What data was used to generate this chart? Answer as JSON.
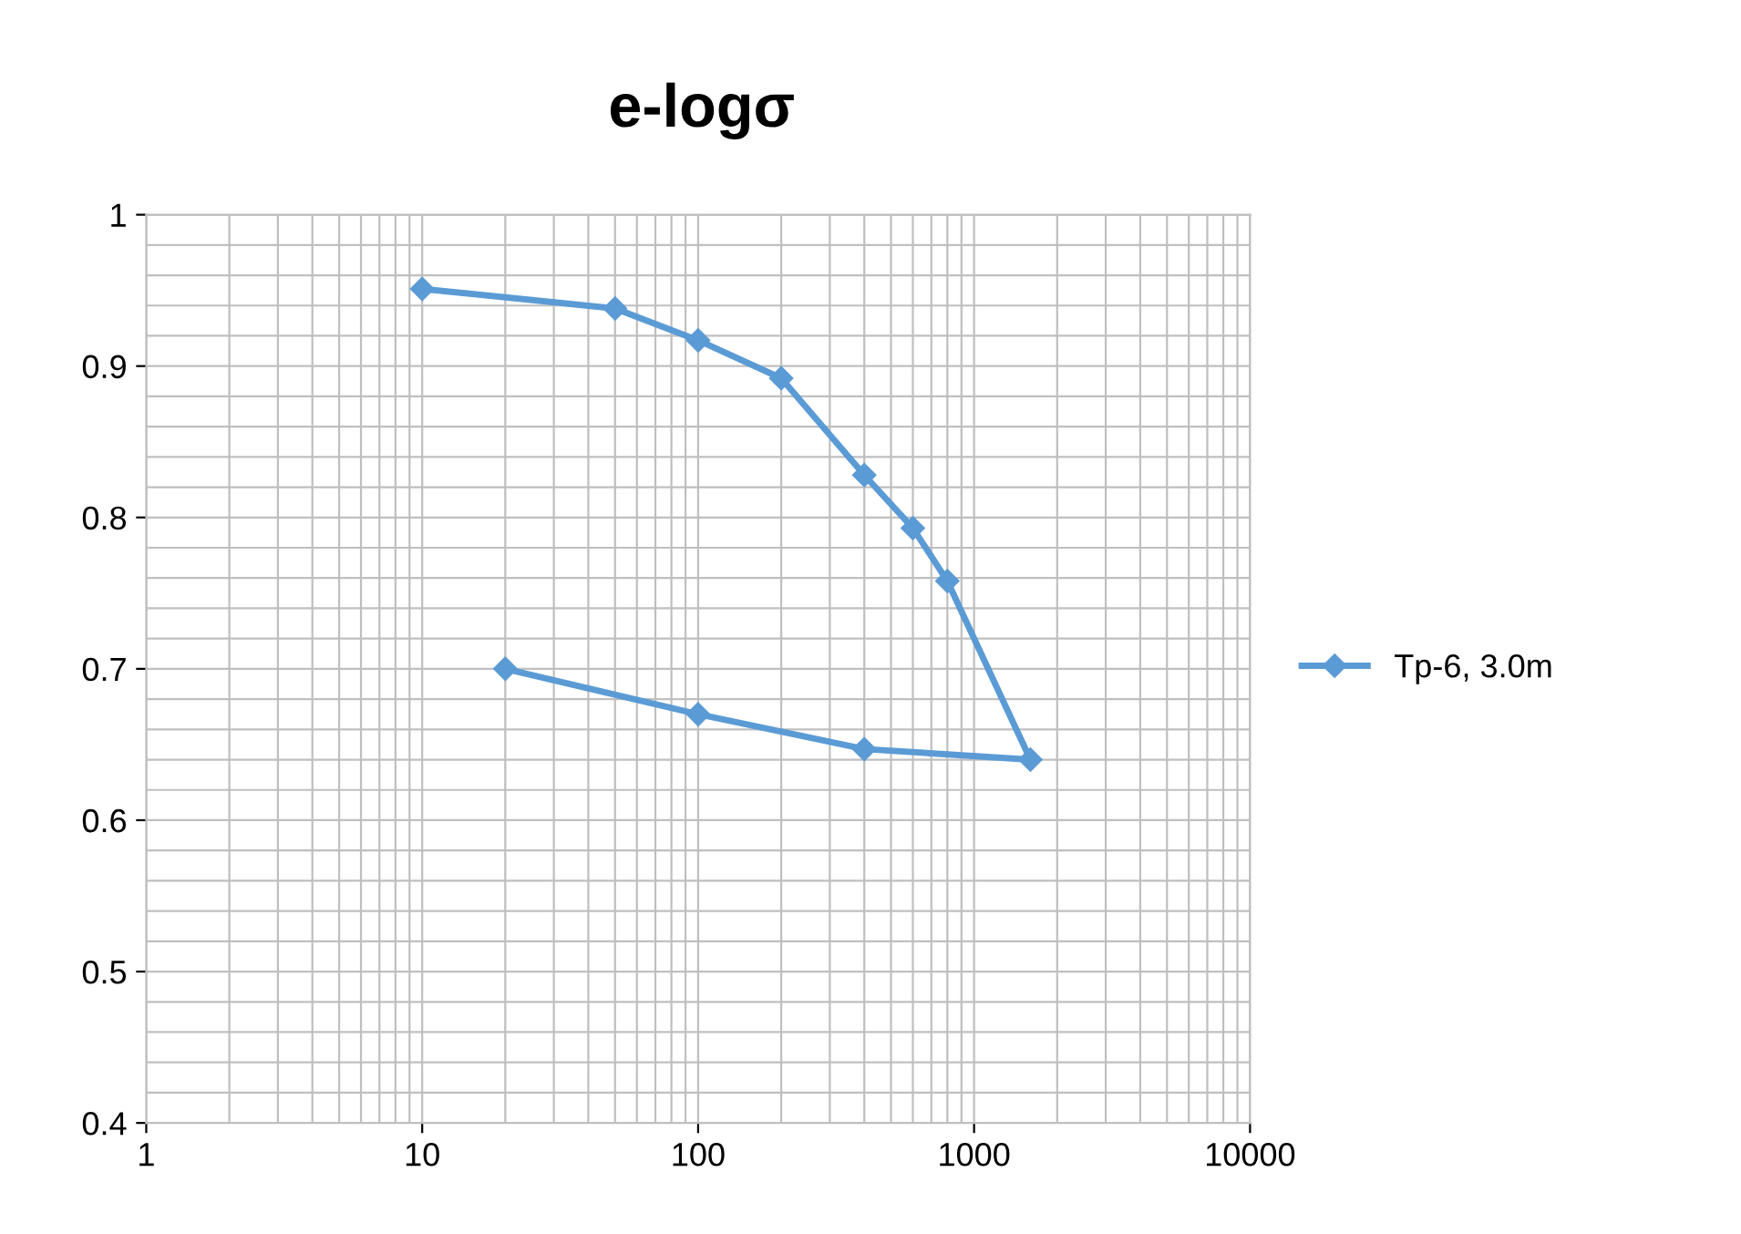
{
  "chart_data": {
    "type": "line",
    "title": "e-logσ",
    "log": "x",
    "x": [
      10,
      50,
      100,
      200,
      400,
      600,
      800,
      1600,
      400,
      100,
      20
    ],
    "series": [
      {
        "name": "Tp-6, 3.0m",
        "color": "#5b9bd5",
        "values": [
          0.951,
          0.938,
          0.917,
          0.892,
          0.828,
          0.793,
          0.758,
          0.64,
          0.647,
          0.67,
          0.7
        ]
      }
    ],
    "xlim": [
      1,
      10000
    ],
    "xticks": [
      1,
      10,
      100,
      1000,
      10000
    ],
    "ylim": [
      0.4,
      1
    ],
    "yticks": [
      0.4,
      0.5,
      0.6,
      0.7,
      0.8,
      0.9,
      1
    ],
    "grid": true,
    "legend": "right",
    "marker": "diamond",
    "line_style": "solid"
  }
}
